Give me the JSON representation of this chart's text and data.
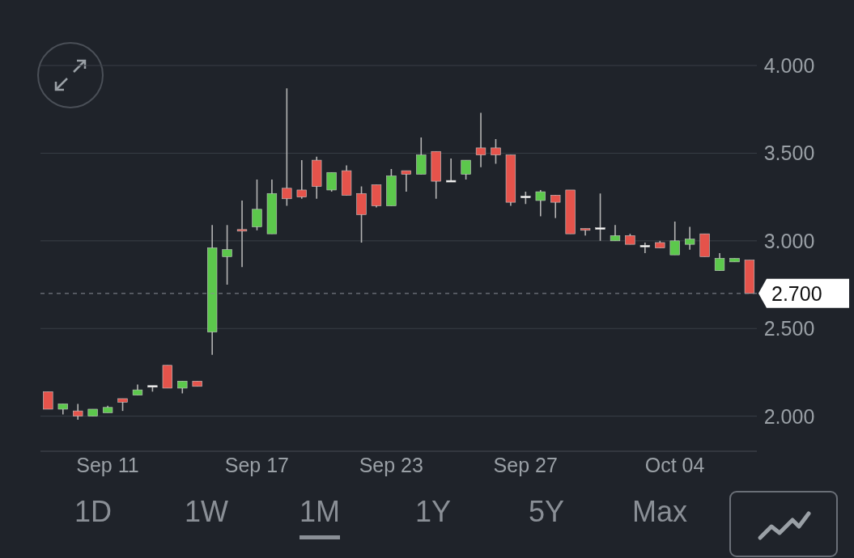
{
  "chart_data": {
    "type": "candlestick",
    "categories": [
      null,
      null,
      null,
      null,
      "Sep 11",
      null,
      null,
      null,
      null,
      null,
      null,
      null,
      null,
      null,
      "Sep 17",
      null,
      null,
      null,
      null,
      null,
      null,
      null,
      null,
      "Sep 23",
      null,
      null,
      null,
      null,
      null,
      null,
      null,
      null,
      "Sep 27",
      null,
      null,
      null,
      null,
      null,
      null,
      null,
      null,
      null,
      "Oct 04",
      null,
      null,
      null,
      null,
      null
    ],
    "ohlc": [
      [
        2.14,
        2.14,
        2.04,
        2.04
      ],
      [
        2.04,
        2.07,
        2.01,
        2.07
      ],
      [
        2.03,
        2.07,
        1.98,
        2.0
      ],
      [
        2.0,
        2.04,
        2.0,
        2.04
      ],
      [
        2.02,
        2.06,
        2.02,
        2.05
      ],
      [
        2.1,
        2.1,
        2.03,
        2.08
      ],
      [
        2.12,
        2.18,
        2.12,
        2.15
      ],
      [
        2.17,
        2.17,
        2.14,
        2.17
      ],
      [
        2.29,
        2.29,
        2.16,
        2.16
      ],
      [
        2.16,
        2.2,
        2.13,
        2.2
      ],
      [
        2.2,
        2.2,
        2.17,
        2.17
      ],
      [
        2.48,
        3.09,
        2.35,
        2.96
      ],
      [
        2.91,
        3.09,
        2.75,
        2.95
      ],
      [
        3.06,
        3.23,
        2.85,
        3.06
      ],
      [
        3.08,
        3.35,
        3.06,
        3.18
      ],
      [
        3.04,
        3.35,
        3.04,
        3.27
      ],
      [
        3.3,
        3.87,
        3.2,
        3.24
      ],
      [
        3.29,
        3.46,
        3.24,
        3.25
      ],
      [
        3.46,
        3.48,
        3.24,
        3.31
      ],
      [
        3.29,
        3.39,
        3.28,
        3.39
      ],
      [
        3.4,
        3.43,
        3.26,
        3.26
      ],
      [
        3.27,
        3.31,
        2.99,
        3.15
      ],
      [
        3.32,
        3.32,
        3.19,
        3.2
      ],
      [
        3.2,
        3.41,
        3.2,
        3.37
      ],
      [
        3.4,
        3.4,
        3.28,
        3.38
      ],
      [
        3.38,
        3.59,
        3.38,
        3.49
      ],
      [
        3.51,
        3.51,
        3.24,
        3.34
      ],
      [
        3.34,
        3.47,
        3.34,
        3.34
      ],
      [
        3.38,
        3.46,
        3.35,
        3.46
      ],
      [
        3.53,
        3.73,
        3.42,
        3.49
      ],
      [
        3.53,
        3.58,
        3.44,
        3.49
      ],
      [
        3.49,
        3.49,
        3.2,
        3.22
      ],
      [
        3.25,
        3.28,
        3.21,
        3.25
      ],
      [
        3.23,
        3.29,
        3.14,
        3.28
      ],
      [
        3.26,
        3.26,
        3.13,
        3.22
      ],
      [
        3.29,
        3.29,
        3.04,
        3.04
      ],
      [
        3.07,
        3.07,
        3.03,
        3.06
      ],
      [
        3.07,
        3.27,
        3.0,
        3.07
      ],
      [
        3.0,
        3.09,
        3.0,
        3.03
      ],
      [
        3.03,
        3.04,
        2.98,
        2.98
      ],
      [
        2.97,
        2.99,
        2.93,
        2.97
      ],
      [
        2.99,
        3.0,
        2.96,
        2.96
      ],
      [
        2.92,
        3.11,
        2.92,
        3.0
      ],
      [
        2.98,
        3.08,
        2.95,
        3.01
      ],
      [
        3.04,
        3.04,
        2.91,
        2.91
      ],
      [
        2.83,
        2.93,
        2.83,
        2.9
      ],
      [
        2.88,
        2.9,
        2.88,
        2.9
      ],
      [
        2.89,
        2.89,
        2.7,
        2.7
      ]
    ],
    "colors": [
      "#e5534b",
      "#5cc84c",
      "#e5534b",
      "#5cc84c",
      "#5cc84c",
      "#e5534b",
      "#5cc84c",
      "#ffffff",
      "#e5534b",
      "#5cc84c",
      "#e5534b",
      "#5cc84c",
      "#5cc84c",
      "#e5534b",
      "#5cc84c",
      "#5cc84c",
      "#e5534b",
      "#e5534b",
      "#e5534b",
      "#5cc84c",
      "#e5534b",
      "#e5534b",
      "#e5534b",
      "#5cc84c",
      "#e5534b",
      "#5cc84c",
      "#e5534b",
      "#ffffff",
      "#5cc84c",
      "#e5534b",
      "#e5534b",
      "#e5534b",
      "#ffffff",
      "#5cc84c",
      "#e5534b",
      "#e5534b",
      "#e5534b",
      "#ffffff",
      "#5cc84c",
      "#e5534b",
      "#ffffff",
      "#e5534b",
      "#5cc84c",
      "#5cc84c",
      "#e5534b",
      "#5cc84c",
      "#5cc84c",
      "#e5534b"
    ],
    "ylim": [
      1.8,
      4.0
    ],
    "yticks": [
      {
        "value": 2,
        "label": "2.000"
      },
      {
        "value": 2.5,
        "label": "2.500"
      },
      {
        "value": 3,
        "label": "3.000"
      },
      {
        "value": 3.5,
        "label": "3.500"
      },
      {
        "value": 4,
        "label": "4.000"
      }
    ],
    "grid": "y",
    "ref_lines": [
      {
        "axis": "y",
        "value": 2.7,
        "label": "2.700",
        "line_style": "dashed",
        "color": "#8a8f96"
      }
    ],
    "annotations": [
      "1D",
      "1W",
      "1M",
      "1Y",
      "5Y",
      "Max"
    ]
  }
}
